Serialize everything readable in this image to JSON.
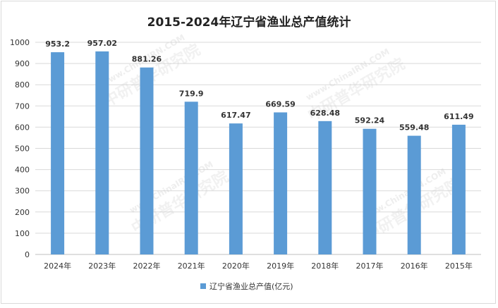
{
  "chart_data": {
    "type": "bar",
    "title": "2015-2024年辽宁省渔业总产值统计",
    "categories": [
      "2024年",
      "2023年",
      "2022年",
      "2021年",
      "2020年",
      "2019年",
      "2018年",
      "2017年",
      "2016年",
      "2015年"
    ],
    "series": [
      {
        "name": "辽宁省渔业总产值(亿元)",
        "values": [
          953.2,
          957.02,
          881.26,
          719.9,
          617.47,
          669.59,
          628.48,
          592.24,
          559.48,
          611.49
        ],
        "labels": [
          "953.2",
          "957.02",
          "881.26",
          "719.9",
          "617.47",
          "669.59",
          "628.48",
          "592.24",
          "559.48",
          "611.49"
        ]
      }
    ],
    "ylim": [
      0,
      1000
    ],
    "yticks": [
      0,
      100,
      200,
      300,
      400,
      500,
      600,
      700,
      800,
      900,
      1000
    ],
    "grid": true,
    "legend": "bottom",
    "colors": {
      "bar": "#5b9bd5"
    }
  },
  "watermark": {
    "brand": "中研普华研究院",
    "url": "www.ChinaIRN.COM"
  }
}
